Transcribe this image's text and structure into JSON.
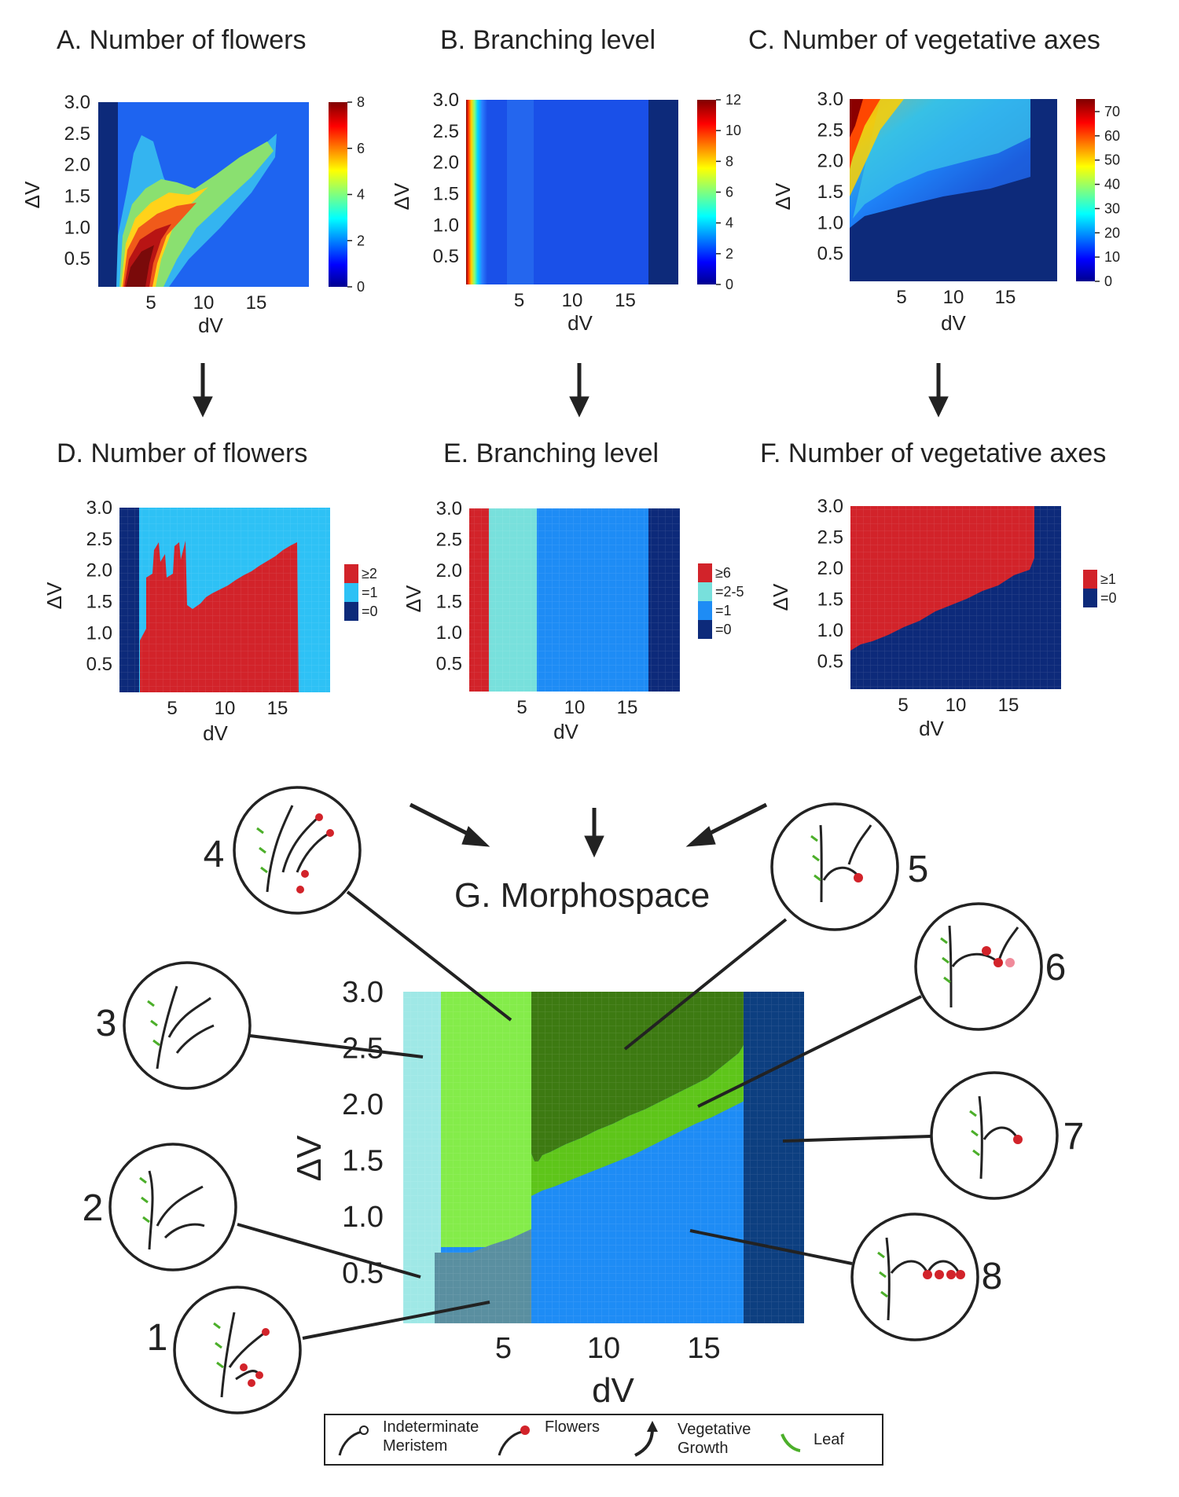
{
  "panels": {
    "a": {
      "title": "A. Number of flowers",
      "colorbar_ticks": [
        "8",
        "6",
        "4",
        "2",
        "0"
      ],
      "colorbar_values": [
        8,
        6,
        4,
        2,
        0
      ]
    },
    "b": {
      "title": "B. Branching level",
      "colorbar_ticks": [
        "12",
        "10",
        "8",
        "6",
        "4",
        "2",
        "0"
      ],
      "colorbar_values": [
        12,
        10,
        8,
        6,
        4,
        2,
        0
      ]
    },
    "c": {
      "title": "C. Number of vegetative axes",
      "colorbar_ticks": [
        "70",
        "60",
        "50",
        "40",
        "30",
        "20",
        "10",
        "0"
      ],
      "colorbar_values": [
        70,
        60,
        50,
        40,
        30,
        20,
        10,
        0
      ]
    },
    "d": {
      "title": "D. Number of flowers",
      "legend": [
        "≥2",
        "=1",
        "=0"
      ],
      "legend_colors": [
        "#d2232a",
        "#2ec1f5",
        "#0d2a7a"
      ]
    },
    "e": {
      "title": "E. Branching level",
      "legend": [
        "≥6",
        "=2-5",
        "=1",
        "=0"
      ],
      "legend_colors": [
        "#d2232a",
        "#78e0dc",
        "#1e8cf5",
        "#0d2a7a"
      ]
    },
    "f": {
      "title": "F. Number of vegetative axes",
      "legend": [
        "≥1",
        "=0"
      ],
      "legend_colors": [
        "#d2232a",
        "#0d2a7a"
      ]
    },
    "g": {
      "title": "G. Morphospace"
    }
  },
  "axes": {
    "xlabel": "dV",
    "ylabel": "ΔV",
    "xticks": [
      "5",
      "10",
      "15"
    ],
    "xtick_values": [
      5,
      10,
      15
    ],
    "xrange": [
      0,
      20
    ],
    "yticks": [
      "3.0",
      "2.5",
      "2.0",
      "1.5",
      "1.0",
      "0.5"
    ],
    "ytick_values": [
      3.0,
      2.5,
      2.0,
      1.5,
      1.0,
      0.5
    ],
    "yrange": [
      0.05,
      3.0
    ]
  },
  "morphotypes": [
    "1",
    "2",
    "3",
    "4",
    "5",
    "6",
    "7",
    "8"
  ],
  "legend": {
    "meristem_l1": "Indeterminate",
    "meristem_l2": "Meristem",
    "flowers": "Flowers",
    "veg_l1": "Vegetative",
    "veg_l2": "Growth",
    "leaf": "Leaf"
  },
  "colors": {
    "dark_blue": "#0d2a7a",
    "mid_blue": "#1e8cf5",
    "red": "#d2232a",
    "cyan": "#2ec1f5",
    "light_green": "#7ee84a",
    "dark_green": "#3d7a12",
    "leaf_green": "#4caf2a"
  },
  "chart_data": [
    {
      "type": "heatmap",
      "title": "A. Number of flowers",
      "xlabel": "dV",
      "ylabel": "ΔV",
      "xlim": [
        0,
        20
      ],
      "ylim": [
        0.05,
        3.0
      ],
      "colorbar_range": [
        0,
        8
      ]
    },
    {
      "type": "heatmap",
      "title": "B. Branching level",
      "xlabel": "dV",
      "ylabel": "ΔV",
      "xlim": [
        0,
        20
      ],
      "ylim": [
        0.05,
        3.0
      ],
      "colorbar_range": [
        0,
        12
      ]
    },
    {
      "type": "heatmap",
      "title": "C. Number of vegetative axes",
      "xlabel": "dV",
      "ylabel": "ΔV",
      "xlim": [
        0,
        20
      ],
      "ylim": [
        0.05,
        3.0
      ],
      "colorbar_range": [
        0,
        70
      ]
    },
    {
      "type": "heatmap",
      "title": "D. Number of flowers",
      "xlabel": "dV",
      "ylabel": "ΔV",
      "categories": [
        "≥2",
        "=1",
        "=0"
      ]
    },
    {
      "type": "heatmap",
      "title": "E. Branching level",
      "xlabel": "dV",
      "ylabel": "ΔV",
      "categories": [
        "≥6",
        "=2-5",
        "=1",
        "=0"
      ]
    },
    {
      "type": "heatmap",
      "title": "F. Number of vegetative axes",
      "xlabel": "dV",
      "ylabel": "ΔV",
      "categories": [
        "≥1",
        "=0"
      ]
    },
    {
      "type": "heatmap",
      "title": "G. Morphospace",
      "xlabel": "dV",
      "ylabel": "ΔV",
      "regions": [
        "1",
        "2",
        "3",
        "4",
        "5",
        "6",
        "7",
        "8"
      ]
    }
  ]
}
